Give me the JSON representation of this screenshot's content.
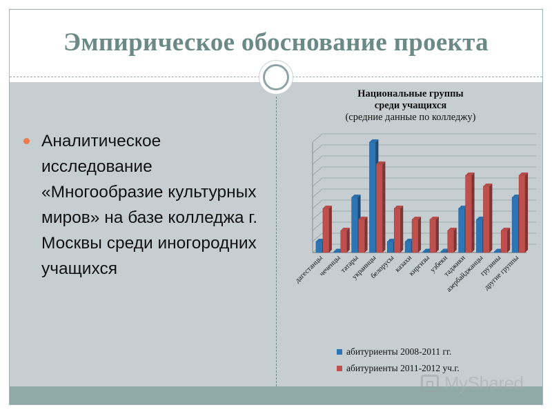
{
  "slide": {
    "title": "Эмпирическое обоснование проекта",
    "body_text": "Аналитическое исследование «Многообразие культурных миров» на базе колледжа г. Москвы среди иногородних учащихся"
  },
  "watermark": {
    "text": "MyShared"
  },
  "chart_data": {
    "type": "bar",
    "title_line1": "Национальные группы",
    "title_line2": "среди учащихся",
    "subtitle": "(средние данные по колледжу)",
    "categories": [
      "дагестанцы",
      "чеченцы",
      "татары",
      "украинцы",
      "белорусы",
      "казахи",
      "киргизы",
      "узбеки",
      "таджики",
      "азербайджанцы",
      "грузины",
      "другие группы"
    ],
    "series": [
      {
        "name": "абитуриенты 2008-2011 гг.",
        "color": "#2e75b6",
        "values": [
          1,
          0,
          5,
          10,
          1,
          1,
          0,
          0,
          4,
          3,
          0,
          5
        ]
      },
      {
        "name": "абитуриенты 2011-2012 уч.г.",
        "color": "#c0504d",
        "values": [
          4,
          2,
          3,
          8,
          4,
          3,
          3,
          2,
          7,
          6,
          2,
          7
        ]
      }
    ],
    "ylim": [
      0,
      10
    ],
    "grid": true,
    "legend_position": "bottom"
  }
}
